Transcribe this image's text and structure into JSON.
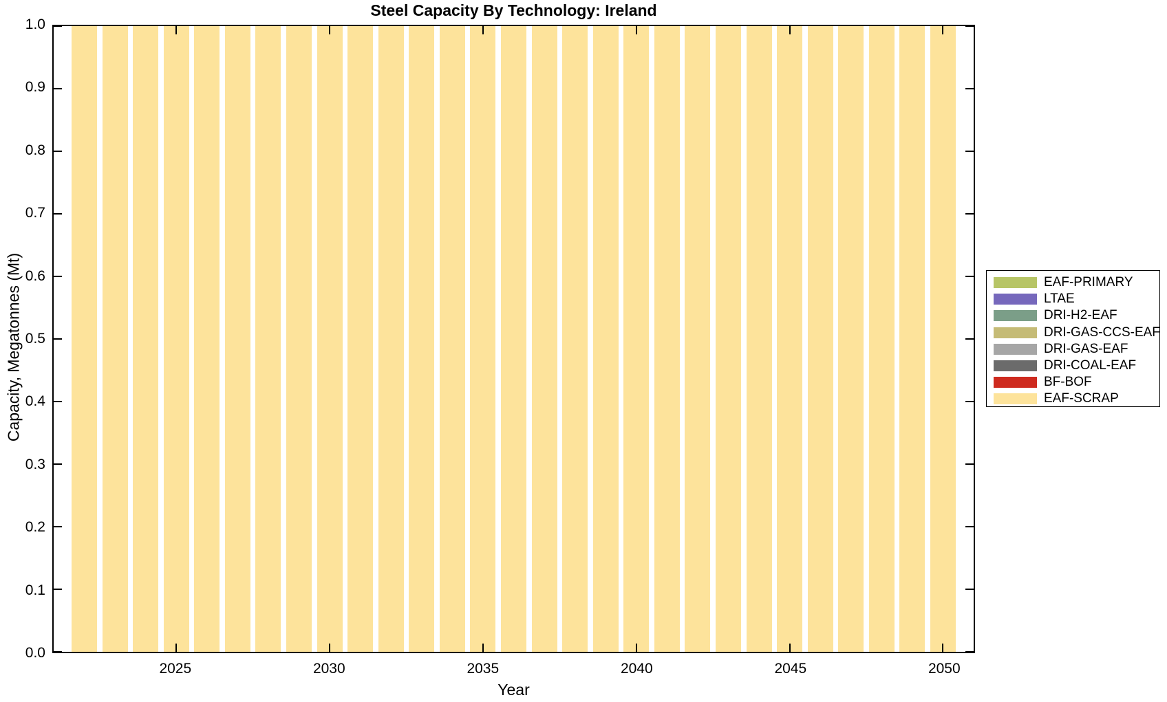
{
  "title": "Steel Capacity By Technology: Ireland",
  "axes": {
    "xlabel": "Year",
    "ylabel": "Capacity, Megatonnes (Mt)",
    "xtick_labels": [
      "2025",
      "2030",
      "2035",
      "2040",
      "2045",
      "2050"
    ],
    "ytick_labels": [
      "0.0",
      "0.1",
      "0.2",
      "0.3",
      "0.4",
      "0.5",
      "0.6",
      "0.7",
      "0.8",
      "0.9",
      "1.0"
    ]
  },
  "colors": {
    "background": "#FFFFFF",
    "axis": "#000000"
  },
  "chart_data": {
    "type": "bar",
    "stacked": true,
    "title": "Steel Capacity By Technology: Ireland",
    "xlabel": "Year",
    "ylabel": "Capacity, Megatonnes (Mt)",
    "xlim": [
      2021,
      2051
    ],
    "ylim": [
      0,
      1
    ],
    "grid": false,
    "legend_position": "outside-right",
    "bar_width_years": 0.83,
    "x": [
      2022,
      2023,
      2024,
      2025,
      2026,
      2027,
      2028,
      2029,
      2030,
      2031,
      2032,
      2033,
      2034,
      2035,
      2036,
      2037,
      2038,
      2039,
      2040,
      2041,
      2042,
      2043,
      2044,
      2045,
      2046,
      2047,
      2048,
      2049,
      2050
    ],
    "xticks": [
      2025,
      2030,
      2035,
      2040,
      2045,
      2050
    ],
    "yticks": [
      0,
      0.1,
      0.2,
      0.3,
      0.4,
      0.5,
      0.6,
      0.7,
      0.8,
      0.9,
      1
    ],
    "series": [
      {
        "name": "EAF-PRIMARY",
        "color": "#B7C566",
        "values": [
          0,
          0,
          0,
          0,
          0,
          0,
          0,
          0,
          0,
          0,
          0,
          0,
          0,
          0,
          0,
          0,
          0,
          0,
          0,
          0,
          0,
          0,
          0,
          0,
          0,
          0,
          0,
          0,
          0
        ]
      },
      {
        "name": "LTAE",
        "color": "#7668BC",
        "values": [
          0,
          0,
          0,
          0,
          0,
          0,
          0,
          0,
          0,
          0,
          0,
          0,
          0,
          0,
          0,
          0,
          0,
          0,
          0,
          0,
          0,
          0,
          0,
          0,
          0,
          0,
          0,
          0,
          0
        ]
      },
      {
        "name": "DRI-H2-EAF",
        "color": "#7B9E88",
        "values": [
          0,
          0,
          0,
          0,
          0,
          0,
          0,
          0,
          0,
          0,
          0,
          0,
          0,
          0,
          0,
          0,
          0,
          0,
          0,
          0,
          0,
          0,
          0,
          0,
          0,
          0,
          0,
          0,
          0
        ]
      },
      {
        "name": "DRI-GAS-CCS-EAF",
        "color": "#C5BB76",
        "values": [
          0,
          0,
          0,
          0,
          0,
          0,
          0,
          0,
          0,
          0,
          0,
          0,
          0,
          0,
          0,
          0,
          0,
          0,
          0,
          0,
          0,
          0,
          0,
          0,
          0,
          0,
          0,
          0,
          0
        ]
      },
      {
        "name": "DRI-GAS-EAF",
        "color": "#A6A6A6",
        "values": [
          0,
          0,
          0,
          0,
          0,
          0,
          0,
          0,
          0,
          0,
          0,
          0,
          0,
          0,
          0,
          0,
          0,
          0,
          0,
          0,
          0,
          0,
          0,
          0,
          0,
          0,
          0,
          0,
          0
        ]
      },
      {
        "name": "DRI-COAL-EAF",
        "color": "#6B6B6B",
        "values": [
          0,
          0,
          0,
          0,
          0,
          0,
          0,
          0,
          0,
          0,
          0,
          0,
          0,
          0,
          0,
          0,
          0,
          0,
          0,
          0,
          0,
          0,
          0,
          0,
          0,
          0,
          0,
          0,
          0
        ]
      },
      {
        "name": "BF-BOF",
        "color": "#CE2A1E",
        "values": [
          0,
          0,
          0,
          0,
          0,
          0,
          0,
          0,
          0,
          0,
          0,
          0,
          0,
          0,
          0,
          0,
          0,
          0,
          0,
          0,
          0,
          0,
          0,
          0,
          0,
          0,
          0,
          0,
          0
        ]
      },
      {
        "name": "EAF-SCRAP",
        "color": "#FDE39B",
        "values": [
          1,
          1,
          1,
          1,
          1,
          1,
          1,
          1,
          1,
          1,
          1,
          1,
          1,
          1,
          1,
          1,
          1,
          1,
          1,
          1,
          1,
          1,
          1,
          1,
          1,
          1,
          1,
          1,
          1
        ]
      }
    ]
  }
}
